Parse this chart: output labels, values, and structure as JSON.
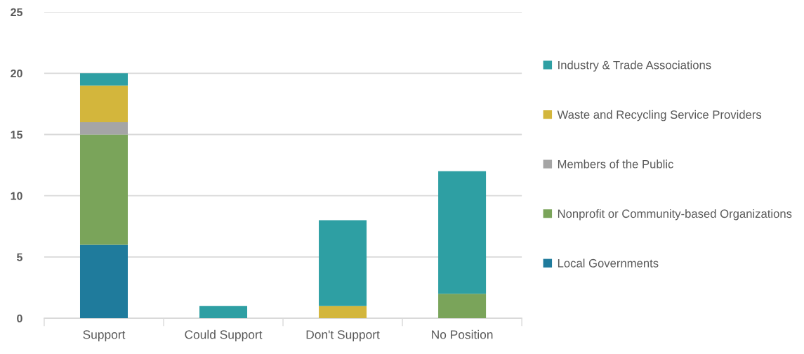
{
  "chart_data": {
    "type": "bar",
    "stacked": true,
    "categories": [
      "Support",
      "Could Support",
      "Don't Support",
      "No Position"
    ],
    "series": [
      {
        "name": "Local Governments",
        "color": "#1f7b9c",
        "values": [
          6,
          null,
          null,
          null
        ]
      },
      {
        "name": "Nonprofit or Community-based Organizations",
        "color": "#7aa45a",
        "values": [
          9,
          null,
          null,
          2
        ]
      },
      {
        "name": "Members of the Public",
        "color": "#a5a5a5",
        "values": [
          1,
          null,
          null,
          null
        ]
      },
      {
        "name": "Waste and Recycling Service Providers",
        "color": "#d3b63c",
        "values": [
          3,
          null,
          1,
          null
        ]
      },
      {
        "name": "Industry & Trade Associations",
        "color": "#2e9fa3",
        "values": [
          1,
          1,
          7,
          10
        ]
      }
    ],
    "ylim": [
      0,
      25
    ],
    "yticks": [
      0,
      5,
      10,
      15,
      20,
      25
    ],
    "grid": "y",
    "legend": "right"
  }
}
